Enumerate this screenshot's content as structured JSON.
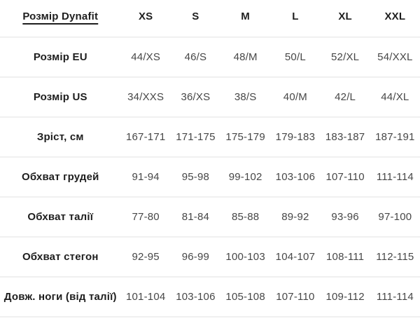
{
  "colors": {
    "background": "#ffffff",
    "text_primary": "#1e1e1e",
    "text_secondary": "#474747",
    "row_border": "#f0f0f0"
  },
  "table": {
    "corner_label": "Розмір Dynafit",
    "columns": [
      "XS",
      "S",
      "M",
      "L",
      "XL",
      "XXL"
    ],
    "rows": [
      {
        "label": "Розмір EU",
        "values": [
          "44/XS",
          "46/S",
          "48/M",
          "50/L",
          "52/XL",
          "54/XXL"
        ]
      },
      {
        "label": "Розмір US",
        "values": [
          "34/XXS",
          "36/XS",
          "38/S",
          "40/M",
          "42/L",
          "44/XL"
        ]
      },
      {
        "label": "Зріст, см",
        "values": [
          "167-171",
          "171-175",
          "175-179",
          "179-183",
          "183-187",
          "187-191"
        ]
      },
      {
        "label": "Обхват грудей",
        "values": [
          "91-94",
          "95-98",
          "99-102",
          "103-106",
          "107-110",
          "111-114"
        ]
      },
      {
        "label": "Обхват талії",
        "values": [
          "77-80",
          "81-84",
          "85-88",
          "89-92",
          "93-96",
          "97-100"
        ]
      },
      {
        "label": "Обхват стегон",
        "values": [
          "92-95",
          "96-99",
          "100-103",
          "104-107",
          "108-111",
          "112-115"
        ]
      },
      {
        "label": "Довж. ноги (від талії)",
        "values": [
          "101-104",
          "103-106",
          "105-108",
          "107-110",
          "109-112",
          "111-114"
        ]
      }
    ]
  }
}
